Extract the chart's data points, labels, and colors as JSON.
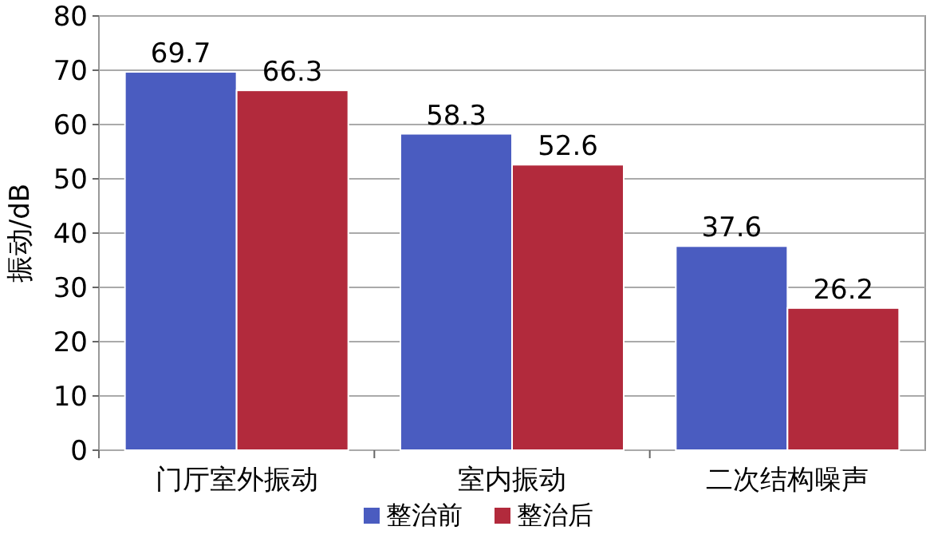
{
  "chart_data": {
    "type": "bar",
    "ylabel": "振动/dB",
    "categories": [
      "门厅室外振动",
      "室内振动",
      "二次结构噪声"
    ],
    "series": [
      {
        "name": "整治前",
        "color": "#4a5cc0",
        "values": [
          69.7,
          58.3,
          37.6
        ]
      },
      {
        "name": "整治后",
        "color": "#b22a3c",
        "values": [
          66.3,
          52.6,
          26.2
        ]
      }
    ],
    "ylim": [
      0,
      80
    ],
    "yticks": [
      0,
      10,
      20,
      30,
      40,
      50,
      60,
      70,
      80
    ],
    "grid": "y",
    "legend": "bottom",
    "data_labels": true
  }
}
